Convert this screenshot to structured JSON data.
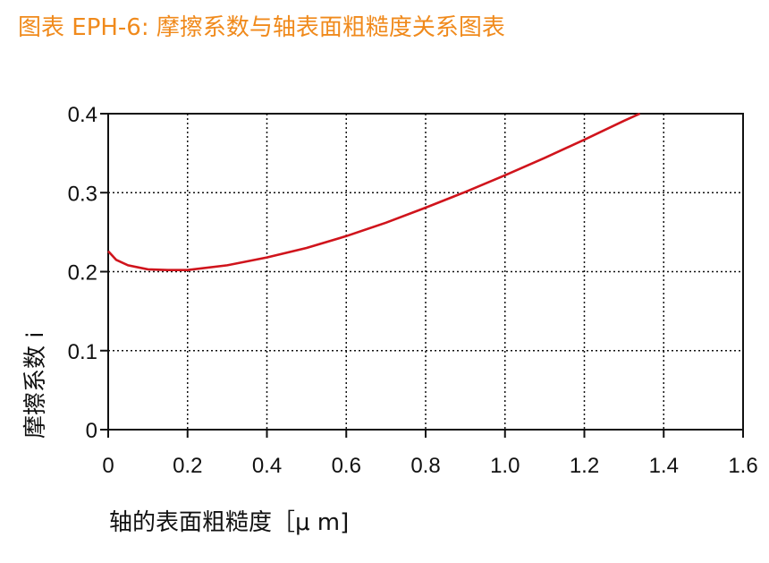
{
  "title": "图表 EPH-6: 摩擦系数与轴表面粗糙度关系图表",
  "colors": {
    "title": "#f08a1c",
    "curve": "#d0141c",
    "axis": "#111111"
  },
  "chart_data": {
    "type": "line",
    "xlabel": "轴的表面粗糙度［μ m]",
    "ylabel": "摩擦系数 i",
    "xlim": [
      0,
      1.6
    ],
    "ylim": [
      0,
      0.4
    ],
    "x_tick_labels": [
      "0",
      "0.2",
      "0.4",
      "0.6",
      "0.8",
      "1.0",
      "1.2",
      "1.4",
      "1.6"
    ],
    "y_tick_labels": [
      "0",
      "0.1",
      "0.2",
      "0.3",
      "0.4"
    ],
    "grid": true,
    "series": [
      {
        "x": [
          0,
          0.02,
          0.05,
          0.1,
          0.15,
          0.2,
          0.3,
          0.4,
          0.5,
          0.6,
          0.7,
          0.8,
          0.9,
          1.0,
          1.1,
          1.2,
          1.3,
          1.34
        ],
        "y": [
          0.226,
          0.215,
          0.208,
          0.203,
          0.202,
          0.202,
          0.208,
          0.218,
          0.23,
          0.245,
          0.262,
          0.281,
          0.301,
          0.322,
          0.344,
          0.367,
          0.391,
          0.4
        ]
      }
    ]
  }
}
